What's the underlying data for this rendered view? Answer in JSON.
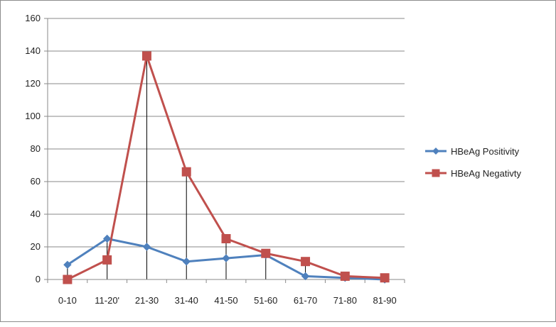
{
  "chart_data": {
    "type": "line",
    "categories": [
      "0-10",
      "11-20'",
      "21-30",
      "31-40",
      "41-50",
      "51-60",
      "61-70",
      "71-80",
      "81-90"
    ],
    "series": [
      {
        "name": "HBeAg Positivity",
        "values": [
          9,
          25,
          20,
          11,
          13,
          15,
          2,
          1,
          0
        ],
        "color": "#4f81bd",
        "marker": "diamond"
      },
      {
        "name": "HBeAg Negativty",
        "values": [
          0,
          12,
          137,
          66,
          25,
          16,
          11,
          2,
          1
        ],
        "color": "#c0504d",
        "marker": "square"
      }
    ],
    "ylim": [
      0,
      160
    ],
    "yticks": [
      0,
      20,
      40,
      60,
      80,
      100,
      120,
      140,
      160
    ],
    "grid": true,
    "legend": "right",
    "drop_lines": true
  }
}
